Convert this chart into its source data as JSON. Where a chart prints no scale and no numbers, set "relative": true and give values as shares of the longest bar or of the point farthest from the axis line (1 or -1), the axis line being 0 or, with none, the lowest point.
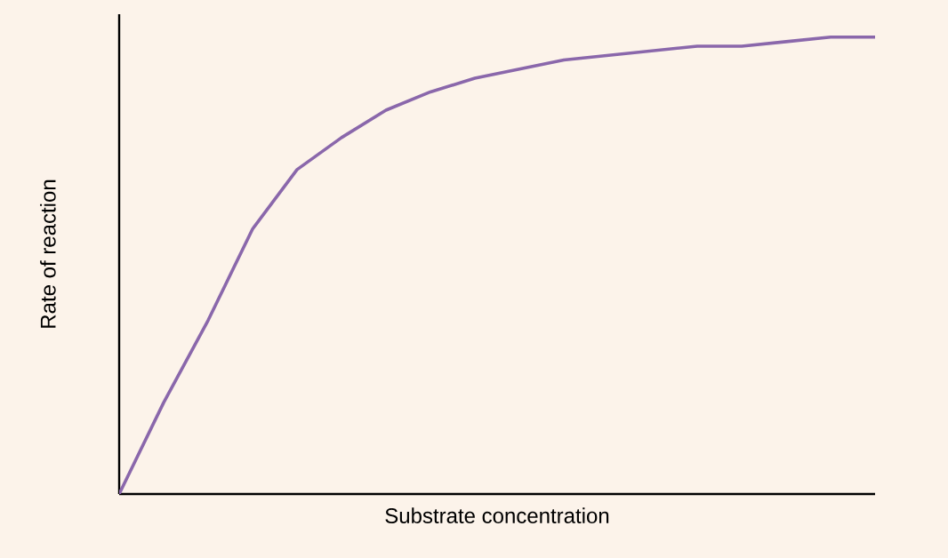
{
  "chart_data": {
    "type": "line",
    "relative": true,
    "xlabel": "Substrate concentration",
    "ylabel": "Rate of reaction",
    "categories": [
      null,
      null,
      null,
      null,
      null,
      null,
      null,
      null,
      null,
      null,
      null,
      null,
      null,
      null,
      null,
      null,
      null,
      null
    ],
    "series": [
      {
        "color": "#8a67ab",
        "values": [
          0,
          0.2,
          0.38,
          0.58,
          0.71,
          0.78,
          0.84,
          0.88,
          0.91,
          0.93,
          0.95,
          0.96,
          0.97,
          0.98,
          0.98,
          0.99,
          1,
          1
        ]
      }
    ],
    "marker": "none",
    "line_style": "solid"
  }
}
